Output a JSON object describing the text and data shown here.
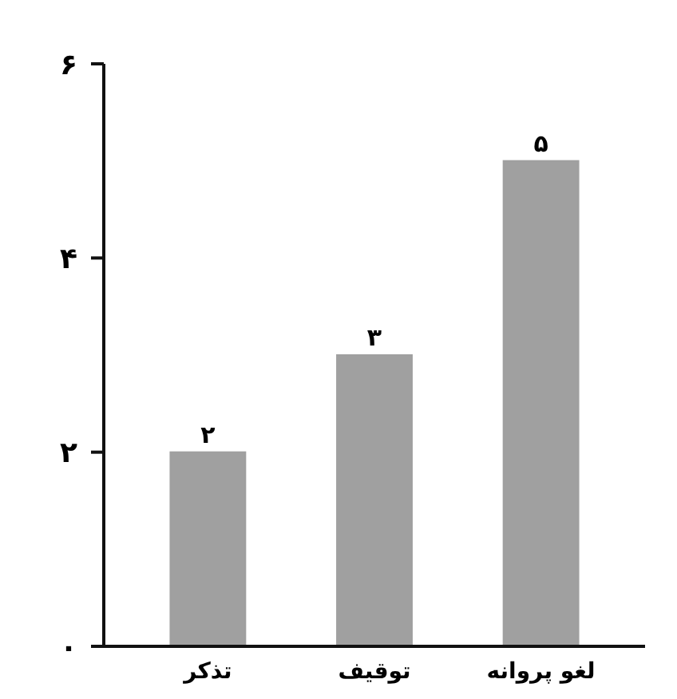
{
  "chart_data": {
    "type": "bar",
    "categories": [
      "تذکر",
      "توقیف",
      "لغو پروانه"
    ],
    "values": [
      2,
      3,
      5
    ],
    "value_labels": [
      "۲",
      "۳",
      "۵"
    ],
    "color": "#a0a0a0",
    "ylim": [
      0,
      6
    ],
    "yticks": [
      {
        "value": 0,
        "label": "۰"
      },
      {
        "value": 2,
        "label": "۲"
      },
      {
        "value": 4,
        "label": "۴"
      },
      {
        "value": 6,
        "label": "۶"
      }
    ],
    "grid": false
  }
}
